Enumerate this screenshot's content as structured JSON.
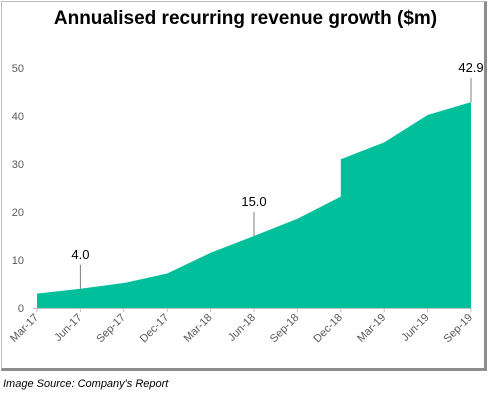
{
  "chart_data": {
    "type": "area",
    "title": "Annualised recurring revenue growth ($m)",
    "xlabel": "",
    "ylabel": "",
    "ylim": [
      0,
      50
    ],
    "y_ticks": [
      0,
      10,
      20,
      30,
      40,
      50
    ],
    "categories": [
      "Mar-17",
      "Jun-17",
      "Sep-17",
      "Dec-17",
      "Mar-18",
      "Jun-18",
      "Sep-18",
      "Dec-18",
      "Mar-19",
      "Jun-19",
      "Sep-19"
    ],
    "values": [
      3.0,
      4.0,
      5.2,
      7.2,
      11.5,
      15.0,
      18.6,
      23.2,
      34.5,
      40.2,
      42.9
    ],
    "step": {
      "category": "Dec-18",
      "from": 23.2,
      "to": 31.0
    },
    "annotations": [
      {
        "category": "Jun-17",
        "label": "4.0",
        "value": 4.0
      },
      {
        "category": "Jun-18",
        "label": "15.0",
        "value": 15.0
      },
      {
        "category": "Sep-19",
        "label": "42.9",
        "value": 42.9
      }
    ],
    "fill_color": "#00BF9A",
    "grid": false
  },
  "footer": {
    "source": "Image Source: Company's Report"
  }
}
